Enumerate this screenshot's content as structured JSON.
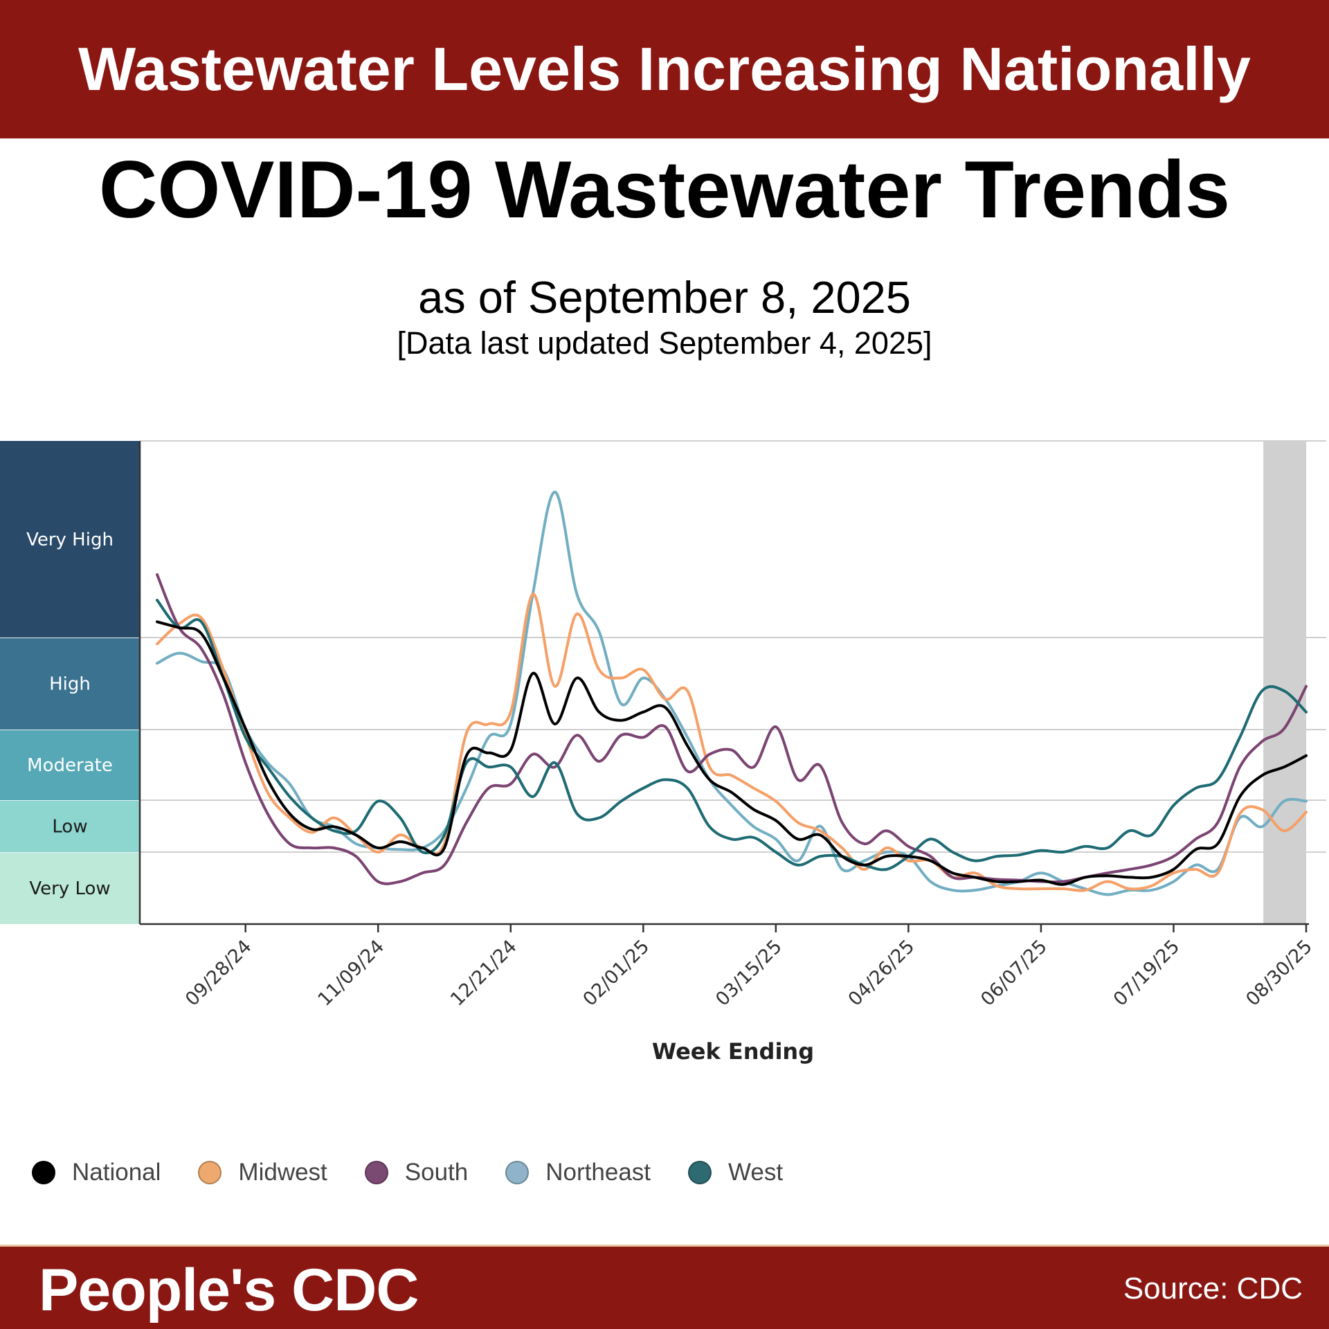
{
  "header": {
    "banner": "Wastewater Levels Increasing Nationally"
  },
  "title": "COVID-19 Wastewater Trends",
  "subtitle": "as of September 8, 2025",
  "updated": "[Data last updated September 4, 2025]",
  "footer": {
    "brand": "People's CDC",
    "source": "Source: CDC"
  },
  "chart_data": {
    "type": "line",
    "title": "",
    "xlabel": "Week Ending",
    "ylabel": "",
    "y_categories": [
      {
        "label": "Very Low",
        "color": "#bde9d9",
        "text_color": "#1a1a1a"
      },
      {
        "label": "Low",
        "color": "#8dd5cf",
        "text_color": "#1a1a1a"
      },
      {
        "label": "Moderate",
        "color": "#56a8b6",
        "text_color": "#ffffff"
      },
      {
        "label": "High",
        "color": "#3a728f",
        "text_color": "#ffffff"
      },
      {
        "label": "Very High",
        "color": "#2a4a6a",
        "text_color": "#ffffff"
      }
    ],
    "y_scale_note_values": "level position: 0-1 Very Low, 1-2 Low, 2-3 Moderate, 3-4 High, 4-5 Very High",
    "grid": true,
    "legend_position": "bottom",
    "shaded_range": [
      "08/16/25",
      "08/30/25"
    ],
    "shaded_color": "#d0d0d0",
    "x_tick_labels": [
      "09/28/24",
      "11/09/24",
      "12/21/24",
      "02/01/25",
      "03/15/25",
      "04/26/25",
      "06/07/25",
      "07/19/25",
      "08/30/25"
    ],
    "x": [
      "08/31/24",
      "09/07/24",
      "09/14/24",
      "09/21/24",
      "09/28/24",
      "10/05/24",
      "10/12/24",
      "10/19/24",
      "10/26/24",
      "11/02/24",
      "11/09/24",
      "11/16/24",
      "11/23/24",
      "11/30/24",
      "12/07/24",
      "12/14/24",
      "12/21/24",
      "12/28/24",
      "01/04/25",
      "01/11/25",
      "01/18/25",
      "01/25/25",
      "02/01/25",
      "02/08/25",
      "02/15/25",
      "02/22/25",
      "03/01/25",
      "03/08/25",
      "03/15/25",
      "03/22/25",
      "03/29/25",
      "04/05/25",
      "04/12/25",
      "04/19/25",
      "04/26/25",
      "05/03/25",
      "05/10/25",
      "05/17/25",
      "05/24/25",
      "05/31/25",
      "06/07/25",
      "06/14/25",
      "06/21/25",
      "06/28/25",
      "07/05/25",
      "07/12/25",
      "07/19/25",
      "07/26/25",
      "08/02/25",
      "08/09/25",
      "08/16/25",
      "08/23/25",
      "08/30/25"
    ],
    "series": [
      {
        "name": "National",
        "color": "#000000",
        "legend_color": "#000000",
        "values": [
          4.08,
          4.05,
          4.02,
          3.56,
          3.01,
          2.29,
          1.74,
          1.44,
          1.49,
          1.33,
          1.08,
          1.2,
          1.08,
          1.08,
          2.63,
          2.67,
          2.71,
          3.61,
          3.06,
          3.56,
          3.19,
          3.1,
          3.19,
          3.24,
          2.77,
          2.29,
          2.11,
          1.82,
          1.61,
          1.25,
          1.33,
          0.94,
          0.82,
          0.94,
          0.94,
          0.88,
          0.71,
          0.65,
          0.59,
          0.59,
          0.61,
          0.55,
          0.65,
          0.67,
          0.65,
          0.65,
          0.76,
          1.05,
          1.16,
          2.05,
          2.35,
          2.47,
          2.63
        ]
      },
      {
        "name": "Midwest",
        "color": "#f5a068",
        "legend_color": "#eeaa6e",
        "values": [
          3.93,
          4.07,
          4.1,
          3.65,
          2.92,
          2.11,
          1.66,
          1.38,
          1.66,
          1.33,
          1.0,
          1.33,
          1.08,
          1.16,
          2.95,
          3.06,
          3.19,
          4.22,
          3.47,
          4.12,
          3.65,
          3.56,
          3.65,
          3.33,
          3.42,
          2.47,
          2.35,
          2.17,
          1.98,
          1.57,
          1.41,
          1.08,
          0.76,
          1.08,
          0.88,
          0.88,
          0.65,
          0.71,
          0.53,
          0.49,
          0.49,
          0.49,
          0.47,
          0.59,
          0.49,
          0.53,
          0.71,
          0.76,
          0.71,
          1.74,
          1.82,
          1.41,
          1.77
        ]
      },
      {
        "name": "South",
        "color": "#7b4472",
        "legend_color": "#7b4a72",
        "values": [
          4.32,
          4.05,
          3.88,
          3.38,
          2.53,
          1.74,
          1.16,
          1.08,
          1.08,
          0.94,
          0.59,
          0.59,
          0.71,
          0.82,
          1.57,
          2.17,
          2.23,
          2.65,
          2.47,
          2.92,
          2.55,
          2.92,
          2.89,
          3.03,
          2.41,
          2.65,
          2.71,
          2.47,
          3.03,
          2.29,
          2.49,
          1.57,
          1.16,
          1.41,
          1.11,
          0.94,
          0.65,
          0.65,
          0.62,
          0.61,
          0.59,
          0.59,
          0.65,
          0.71,
          0.76,
          0.82,
          0.94,
          1.25,
          1.57,
          2.47,
          2.83,
          3.01,
          3.47
        ]
      },
      {
        "name": "Northeast",
        "color": "#72aec2",
        "legend_color": "#8fb3c8",
        "values": [
          3.72,
          3.83,
          3.74,
          3.65,
          3.01,
          2.53,
          2.23,
          1.66,
          1.49,
          1.16,
          1.08,
          1.05,
          1.08,
          1.41,
          2.17,
          2.89,
          3.06,
          4.22,
          4.74,
          4.22,
          4.03,
          3.28,
          3.56,
          3.33,
          2.89,
          2.29,
          1.9,
          1.49,
          1.25,
          0.88,
          1.5,
          0.76,
          0.88,
          1.0,
          0.94,
          0.59,
          0.47,
          0.47,
          0.53,
          0.59,
          0.71,
          0.59,
          0.49,
          0.41,
          0.47,
          0.47,
          0.59,
          0.82,
          0.76,
          1.66,
          1.49,
          1.98,
          1.98
        ]
      },
      {
        "name": "West",
        "color": "#1e6b73",
        "legend_color": "#2e6a72",
        "values": [
          4.19,
          4.05,
          4.08,
          3.56,
          2.89,
          2.47,
          2.05,
          1.66,
          1.41,
          1.41,
          1.98,
          1.66,
          1.0,
          1.33,
          2.53,
          2.47,
          2.47,
          2.05,
          2.53,
          1.74,
          1.66,
          1.98,
          2.17,
          2.29,
          2.17,
          1.49,
          1.25,
          1.28,
          1.0,
          0.82,
          0.94,
          0.94,
          0.82,
          0.76,
          0.94,
          1.25,
          1.0,
          0.88,
          0.94,
          0.96,
          1.03,
          1.0,
          1.11,
          1.08,
          1.41,
          1.33,
          1.9,
          2.17,
          2.29,
          2.89,
          3.42,
          3.42,
          3.19
        ]
      }
    ]
  }
}
